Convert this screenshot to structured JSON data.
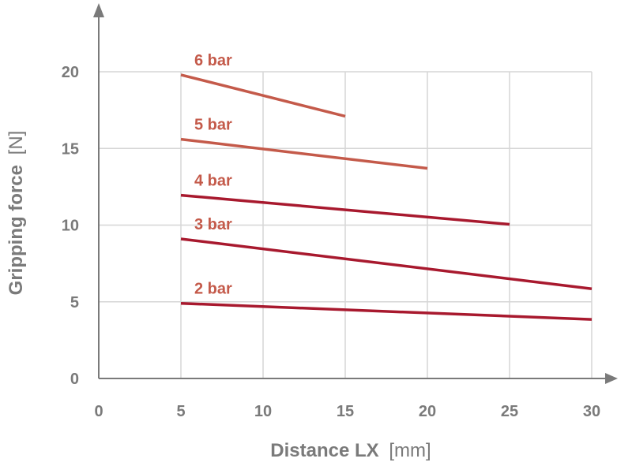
{
  "chart_data": {
    "type": "line",
    "xlabel": {
      "main": "Distance LX",
      "unit": "[mm]"
    },
    "ylabel": {
      "main": "Gripping force",
      "unit": "[N]"
    },
    "xlim": [
      0,
      30
    ],
    "ylim": [
      0,
      20
    ],
    "x_ticks": [
      "0",
      "5",
      "10",
      "15",
      "20",
      "25",
      "30"
    ],
    "y_ticks": [
      "0",
      "5",
      "10",
      "15",
      "20"
    ],
    "grid": true,
    "legend": "inline labels above each line",
    "series": [
      {
        "name": "6 bar",
        "color": "#c45a4a",
        "x": [
          5,
          15
        ],
        "y": [
          19.8,
          17.1
        ]
      },
      {
        "name": "5 bar",
        "color": "#c45a4a",
        "x": [
          5,
          20
        ],
        "y": [
          15.6,
          13.7
        ]
      },
      {
        "name": "4 bar",
        "color": "#a8192e",
        "x": [
          5,
          25
        ],
        "y": [
          11.95,
          10.05
        ]
      },
      {
        "name": "3 bar",
        "color": "#a8192e",
        "x": [
          5,
          30
        ],
        "y": [
          9.1,
          5.85
        ]
      },
      {
        "name": "2 bar",
        "color": "#a8192e",
        "x": [
          5,
          30
        ],
        "y": [
          4.9,
          3.85
        ]
      }
    ],
    "label_color": "#c45a4a"
  }
}
